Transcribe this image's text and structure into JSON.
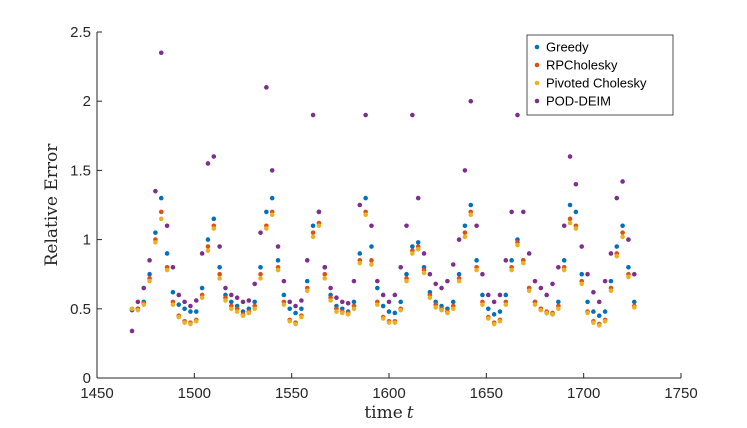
{
  "chart_data": {
    "type": "scatter",
    "title": "",
    "xlabel": "time",
    "xlabel_var": "t",
    "ylabel": "Relative Error",
    "xlim": [
      1450,
      1750
    ],
    "ylim": [
      0,
      2.5
    ],
    "xticks": [
      1450,
      1500,
      1550,
      1600,
      1650,
      1700,
      1750
    ],
    "yticks": [
      0,
      0.5,
      1,
      1.5,
      2,
      2.5
    ],
    "ytick_labels": [
      "0",
      "0.5",
      "1",
      "1.5",
      "2",
      "2.5"
    ],
    "legend_position": "top-right",
    "x": [
      1468,
      1471,
      1474,
      1477,
      1480,
      1483,
      1486,
      1489,
      1492,
      1495,
      1498,
      1501,
      1504,
      1507,
      1510,
      1513,
      1516,
      1519,
      1522,
      1525,
      1528,
      1531,
      1534,
      1537,
      1540,
      1543,
      1546,
      1549,
      1552,
      1555,
      1558,
      1561,
      1564,
      1567,
      1570,
      1573,
      1576,
      1579,
      1582,
      1585,
      1588,
      1591,
      1594,
      1597,
      1600,
      1603,
      1606,
      1609,
      1612,
      1615,
      1618,
      1621,
      1624,
      1627,
      1630,
      1633,
      1636,
      1639,
      1642,
      1645,
      1648,
      1651,
      1654,
      1657,
      1660,
      1663,
      1666,
      1669,
      1672,
      1675,
      1678,
      1681,
      1684,
      1687,
      1690,
      1693,
      1696,
      1699,
      1702,
      1705,
      1708,
      1711,
      1714,
      1717,
      1720,
      1723,
      1726
    ],
    "series": [
      {
        "name": "Greedy",
        "color": "#0072BD",
        "values": [
          0.49,
          0.5,
          0.55,
          0.75,
          1.05,
          1.3,
          0.9,
          0.62,
          0.53,
          0.5,
          0.48,
          0.48,
          0.65,
          1.0,
          1.15,
          0.8,
          0.6,
          0.55,
          0.52,
          0.48,
          0.5,
          0.55,
          0.8,
          1.2,
          1.3,
          0.85,
          0.6,
          0.5,
          0.47,
          0.5,
          0.7,
          1.1,
          1.2,
          0.8,
          0.6,
          0.52,
          0.5,
          0.48,
          0.55,
          0.9,
          1.3,
          0.95,
          0.65,
          0.52,
          0.48,
          0.47,
          0.55,
          0.75,
          0.95,
          0.98,
          0.8,
          0.62,
          0.55,
          0.52,
          0.5,
          0.55,
          0.75,
          1.1,
          1.25,
          0.85,
          0.6,
          0.5,
          0.46,
          0.48,
          0.6,
          0.85,
          1.0,
          0.85,
          0.65,
          0.55,
          0.5,
          0.47,
          0.46,
          0.55,
          0.85,
          1.25,
          1.2,
          0.75,
          0.55,
          0.48,
          0.45,
          0.48,
          0.7,
          0.95,
          1.1,
          0.8,
          0.55
        ]
      },
      {
        "name": "RPCholesky",
        "color": "#D95319",
        "values": [
          0.5,
          0.5,
          0.54,
          0.72,
          1.0,
          1.2,
          0.8,
          0.55,
          0.45,
          0.41,
          0.4,
          0.42,
          0.6,
          0.95,
          1.1,
          0.75,
          0.58,
          0.52,
          0.5,
          0.46,
          0.48,
          0.52,
          0.75,
          1.1,
          1.2,
          0.8,
          0.55,
          0.42,
          0.4,
          0.45,
          0.65,
          1.05,
          1.12,
          0.75,
          0.58,
          0.5,
          0.48,
          0.47,
          0.52,
          0.85,
          1.2,
          0.85,
          0.55,
          0.44,
          0.41,
          0.41,
          0.5,
          0.72,
          0.92,
          0.95,
          0.78,
          0.6,
          0.53,
          0.5,
          0.48,
          0.52,
          0.72,
          1.05,
          1.2,
          0.8,
          0.55,
          0.44,
          0.4,
          0.42,
          0.55,
          0.8,
          0.98,
          0.85,
          0.65,
          0.55,
          0.5,
          0.48,
          0.47,
          0.52,
          0.8,
          1.15,
          1.1,
          0.7,
          0.48,
          0.41,
          0.39,
          0.42,
          0.65,
          0.9,
          1.05,
          0.75,
          0.52
        ]
      },
      {
        "name": "Pivoted Cholesky",
        "color": "#EDB120",
        "values": [
          0.5,
          0.49,
          0.53,
          0.7,
          0.98,
          1.15,
          0.78,
          0.53,
          0.44,
          0.4,
          0.39,
          0.41,
          0.58,
          0.92,
          1.08,
          0.72,
          0.56,
          0.5,
          0.48,
          0.45,
          0.47,
          0.5,
          0.72,
          1.08,
          1.18,
          0.78,
          0.53,
          0.41,
          0.39,
          0.44,
          0.63,
          1.02,
          1.1,
          0.72,
          0.56,
          0.48,
          0.47,
          0.46,
          0.5,
          0.83,
          1.18,
          0.82,
          0.53,
          0.43,
          0.4,
          0.4,
          0.49,
          0.7,
          0.9,
          0.93,
          0.76,
          0.58,
          0.51,
          0.49,
          0.47,
          0.5,
          0.7,
          1.02,
          1.18,
          0.78,
          0.53,
          0.43,
          0.39,
          0.41,
          0.53,
          0.78,
          0.96,
          0.83,
          0.63,
          0.53,
          0.49,
          0.47,
          0.46,
          0.5,
          0.78,
          1.12,
          1.08,
          0.68,
          0.47,
          0.4,
          0.38,
          0.41,
          0.63,
          0.88,
          1.02,
          0.73,
          0.51
        ]
      },
      {
        "name": "POD-DEIM",
        "color": "#7E2F8E",
        "values": [
          0.34,
          0.55,
          0.65,
          0.85,
          1.35,
          2.35,
          1.1,
          0.8,
          0.6,
          0.55,
          0.52,
          0.56,
          0.9,
          1.55,
          1.6,
          0.95,
          0.65,
          0.6,
          0.58,
          0.55,
          0.56,
          0.68,
          1.05,
          2.1,
          1.5,
          0.95,
          0.7,
          0.55,
          0.52,
          0.56,
          0.85,
          1.9,
          1.2,
          0.8,
          0.65,
          0.58,
          0.55,
          0.54,
          0.7,
          1.25,
          1.9,
          1.1,
          0.7,
          0.6,
          0.55,
          0.6,
          0.8,
          1.1,
          1.9,
          1.3,
          0.9,
          0.75,
          0.68,
          0.65,
          0.7,
          0.82,
          1.0,
          1.5,
          2.0,
          1.1,
          0.75,
          0.6,
          0.55,
          0.6,
          0.85,
          1.2,
          1.9,
          1.2,
          0.9,
          0.7,
          0.65,
          0.6,
          0.68,
          0.8,
          1.1,
          1.6,
          1.4,
          0.95,
          0.75,
          0.62,
          0.55,
          0.7,
          0.9,
          1.3,
          1.42,
          1.0,
          0.75
        ]
      }
    ]
  }
}
